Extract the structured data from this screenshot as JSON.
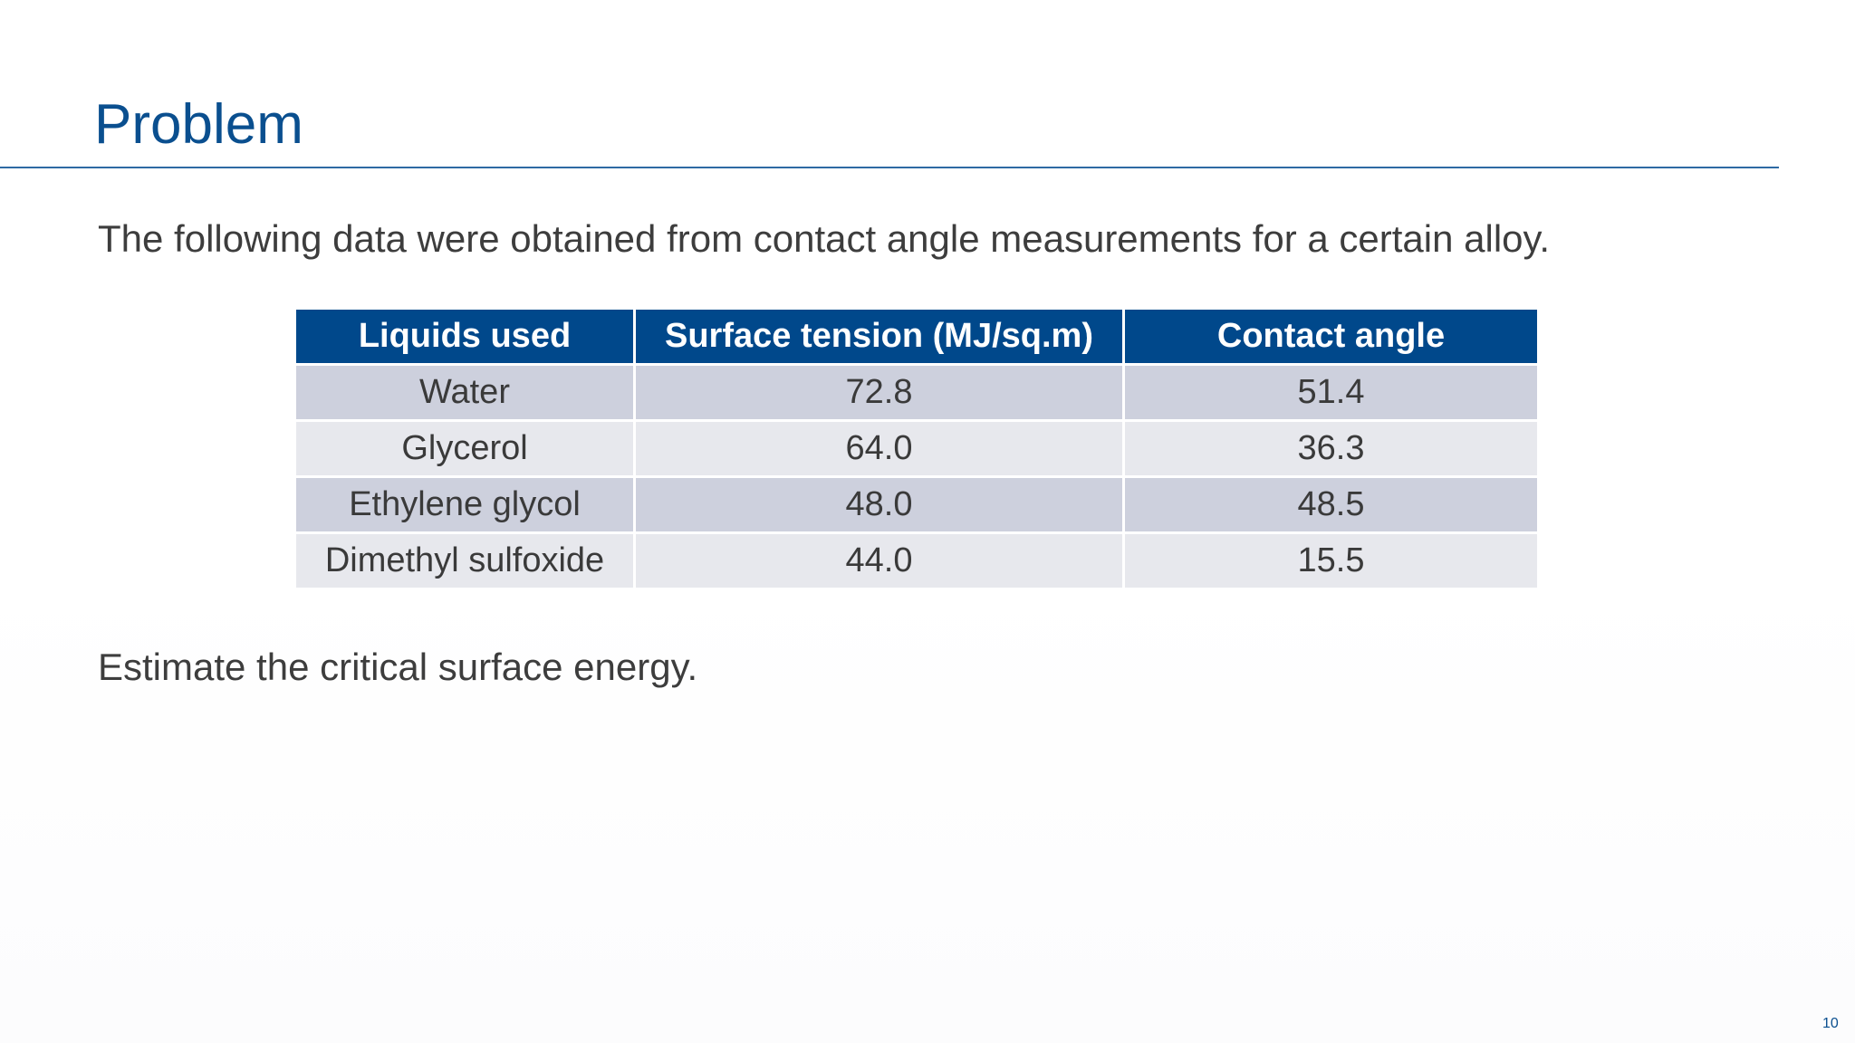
{
  "slide": {
    "title": "Problem",
    "intro": "The following data were obtained from contact angle measurements for a certain alloy.",
    "question": "Estimate the critical surface energy.",
    "page_number": "10"
  },
  "table": {
    "headers": [
      "Liquids used",
      "Surface tension (MJ/sq.m)",
      "Contact angle"
    ],
    "rows": [
      {
        "liquid": "Water",
        "surface_tension": "72.8",
        "contact_angle": "51.4"
      },
      {
        "liquid": "Glycerol",
        "surface_tension": "64.0",
        "contact_angle": "36.3"
      },
      {
        "liquid": "Ethylene glycol",
        "surface_tension": "48.0",
        "contact_angle": "48.5"
      },
      {
        "liquid": "Dimethyl sulfoxide",
        "surface_tension": "44.0",
        "contact_angle": "15.5"
      }
    ]
  },
  "colors": {
    "title": "#0a4f8f",
    "header_bg": "#00488b",
    "row_dark": "#cdd0dd",
    "row_light": "#e7e8ed",
    "body_text": "#3d3d3d"
  }
}
